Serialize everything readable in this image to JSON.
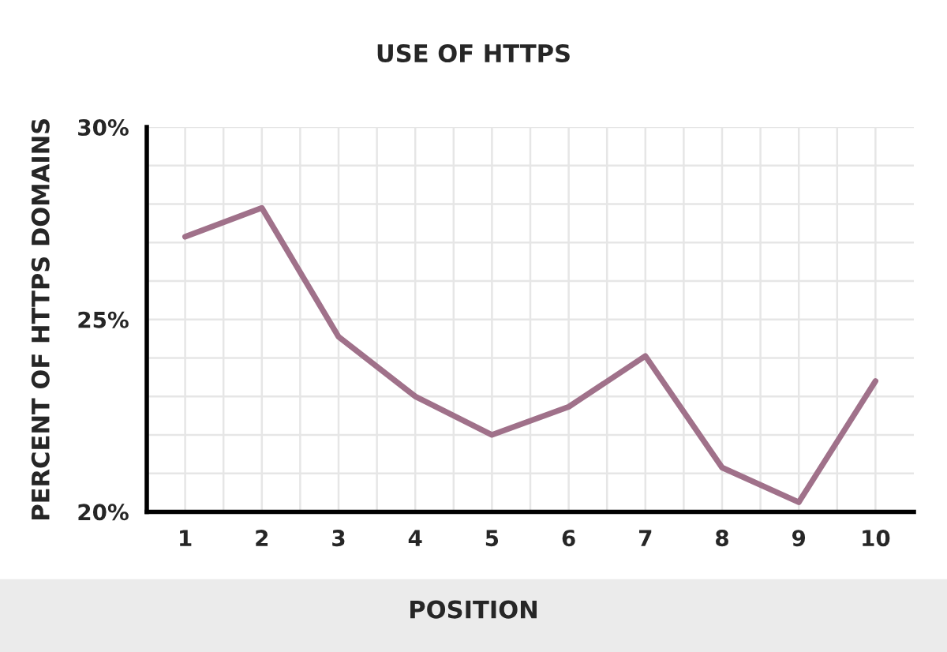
{
  "chart_data": {
    "type": "line",
    "title": "USE OF HTTPS",
    "xlabel": "POSITION",
    "ylabel": "PERCENT OF HTTPS DOMAINS",
    "x": [
      1,
      2,
      3,
      4,
      5,
      6,
      7,
      8,
      9,
      10
    ],
    "series": [
      {
        "color": "#a0718a",
        "values": [
          27.15,
          27.9,
          24.55,
          23.0,
          22.0,
          22.73,
          24.05,
          21.15,
          20.25,
          23.4
        ]
      }
    ],
    "xlim": [
      0.5,
      10.5
    ],
    "ylim": [
      20,
      30
    ],
    "xticks": [
      1,
      2,
      3,
      4,
      5,
      6,
      7,
      8,
      9,
      10
    ],
    "yticks": [
      {
        "value": 20,
        "label": "20%"
      },
      {
        "value": 21,
        "label": null
      },
      {
        "value": 22,
        "label": null
      },
      {
        "value": 23,
        "label": null
      },
      {
        "value": 24,
        "label": null
      },
      {
        "value": 25,
        "label": "25%"
      },
      {
        "value": 26,
        "label": null
      },
      {
        "value": 27,
        "label": null
      },
      {
        "value": 28,
        "label": null
      },
      {
        "value": 29,
        "label": null
      },
      {
        "value": 30,
        "label": "30%"
      }
    ],
    "grid": true,
    "marker": "none",
    "line_style": "solid",
    "legend": false
  }
}
